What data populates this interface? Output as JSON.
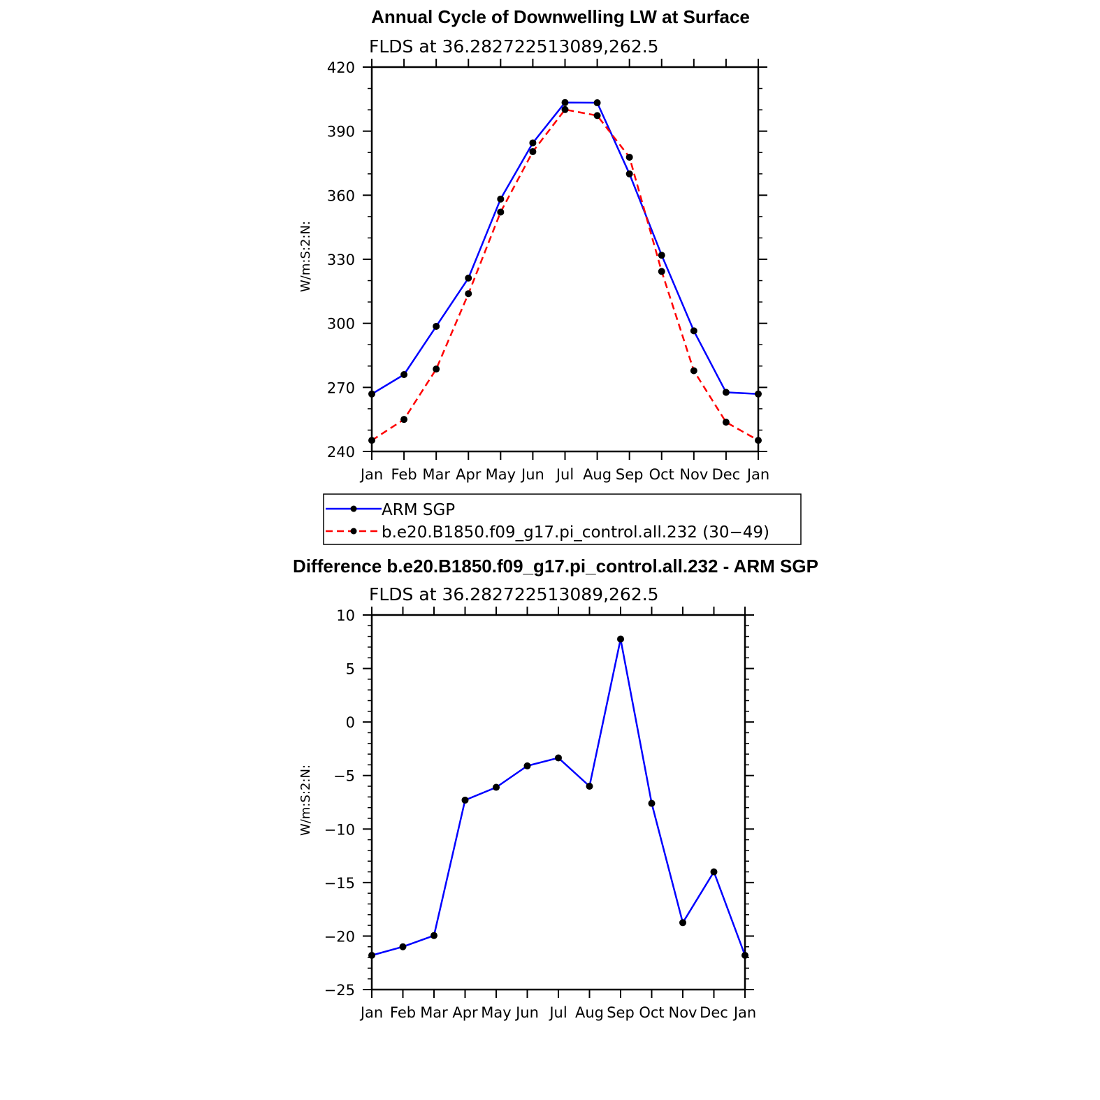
{
  "chart_data": [
    {
      "type": "line",
      "title": "Annual Cycle of Downwelling LW at Surface",
      "subtitle": "FLDS at 36.282722513089,262.5",
      "ylabel": "W/m:S:2:N:",
      "xlabel": "",
      "categories": [
        "Jan",
        "Feb",
        "Mar",
        "Apr",
        "May",
        "Jun",
        "Jul",
        "Aug",
        "Sep",
        "Oct",
        "Nov",
        "Dec",
        "Jan"
      ],
      "ylim": [
        240,
        420
      ],
      "yticks": [
        240,
        270,
        300,
        330,
        360,
        390,
        420
      ],
      "series": [
        {
          "name": "ARM SGP",
          "color": "#0000ff",
          "style": "solid",
          "values": [
            266.9,
            276.0,
            298.6,
            321.2,
            358.2,
            384.5,
            403.4,
            403.3,
            370.0,
            331.9,
            296.5,
            267.7,
            266.9
          ]
        },
        {
          "name": "b.e20.B1850.f09_g17.pi_control.all.232 (30−49)",
          "color": "#ff0000",
          "style": "dashed",
          "values": [
            245.2,
            255.0,
            278.6,
            313.9,
            352.1,
            380.4,
            400.1,
            397.3,
            377.8,
            324.3,
            277.8,
            253.7,
            245.2
          ]
        }
      ],
      "legend": [
        "ARM SGP",
        "b.e20.B1850.f09_g17.pi_control.all.232 (30−49)"
      ],
      "legend_position": "bottom",
      "grid": false
    },
    {
      "type": "line",
      "title": "Difference b.e20.B1850.f09_g17.pi_control.all.232 - ARM SGP",
      "subtitle": "FLDS at 36.282722513089,262.5",
      "ylabel": "W/m:S:2:N:",
      "xlabel": "",
      "categories": [
        "Jan",
        "Feb",
        "Mar",
        "Apr",
        "May",
        "Jun",
        "Jul",
        "Aug",
        "Sep",
        "Oct",
        "Nov",
        "Dec",
        "Jan"
      ],
      "ylim": [
        -25,
        10
      ],
      "yticks": [
        -25,
        -20,
        -15,
        -10,
        -5,
        0,
        5,
        10
      ],
      "ytick_labels": [
        "−25",
        "−20",
        "−15",
        "−10",
        "−5",
        "0",
        "5",
        "10"
      ],
      "series": [
        {
          "color": "#0000ff",
          "style": "solid",
          "values": [
            -21.8,
            -21.0,
            -19.95,
            -7.3,
            -6.1,
            -4.1,
            -3.35,
            -6.0,
            7.75,
            -7.6,
            -18.75,
            -14.0,
            -21.8
          ]
        }
      ],
      "grid": false
    }
  ],
  "colors": {
    "marker": "#000000",
    "axis": "#000000"
  }
}
